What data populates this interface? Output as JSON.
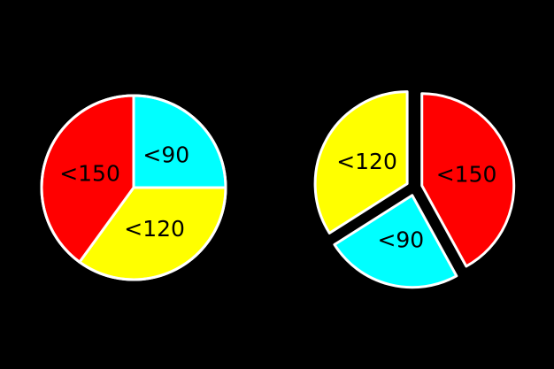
{
  "chart_data": [
    {
      "type": "pie",
      "title": "",
      "categories": [
        "<90",
        "<120",
        "<150"
      ],
      "values": [
        25,
        35,
        40
      ],
      "colors": [
        "#00ffff",
        "#ffff00",
        "#ff0000"
      ],
      "start_angle_deg": 0,
      "exploded": false
    },
    {
      "type": "pie",
      "title": "",
      "categories": [
        "<150",
        "<90",
        "<120"
      ],
      "values": [
        42,
        24,
        34
      ],
      "colors": [
        "#ff0000",
        "#00ffff",
        "#ffff00"
      ],
      "start_angle_deg": 0,
      "exploded": true
    }
  ],
  "style": {
    "background": "#000000",
    "slice_stroke": "#ffffff",
    "label_color": "#000000"
  }
}
